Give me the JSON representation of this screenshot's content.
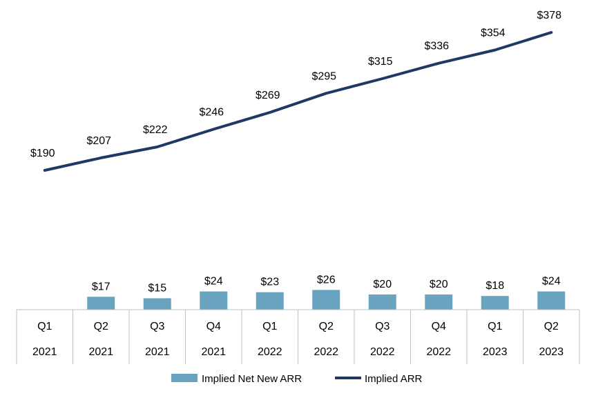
{
  "chart_data": {
    "type": "bar",
    "categories": [
      [
        "Q1",
        "2021"
      ],
      [
        "Q2",
        "2021"
      ],
      [
        "Q3",
        "2021"
      ],
      [
        "Q4",
        "2021"
      ],
      [
        "Q1",
        "2022"
      ],
      [
        "Q2",
        "2022"
      ],
      [
        "Q3",
        "2022"
      ],
      [
        "Q4",
        "2022"
      ],
      [
        "Q1",
        "2023"
      ],
      [
        "Q2",
        "2023"
      ]
    ],
    "series": [
      {
        "name": "Implied Net New ARR",
        "type": "bar",
        "color": "#6aa3c0",
        "values": [
          null,
          17,
          15,
          24,
          23,
          26,
          20,
          20,
          18,
          24
        ],
        "labels": [
          "",
          "$17",
          "$15",
          "$24",
          "$23",
          "$26",
          "$20",
          "$20",
          "$18",
          "$24"
        ]
      },
      {
        "name": "Implied ARR",
        "type": "line",
        "color": "#203864",
        "values": [
          190,
          207,
          222,
          246,
          269,
          295,
          315,
          336,
          354,
          378
        ],
        "labels": [
          "$190",
          "$207",
          "$222",
          "$246",
          "$269",
          "$295",
          "$315",
          "$336",
          "$354",
          "$378"
        ]
      }
    ],
    "legend": {
      "position": "bottom"
    },
    "grid": false,
    "axis_table": true
  }
}
